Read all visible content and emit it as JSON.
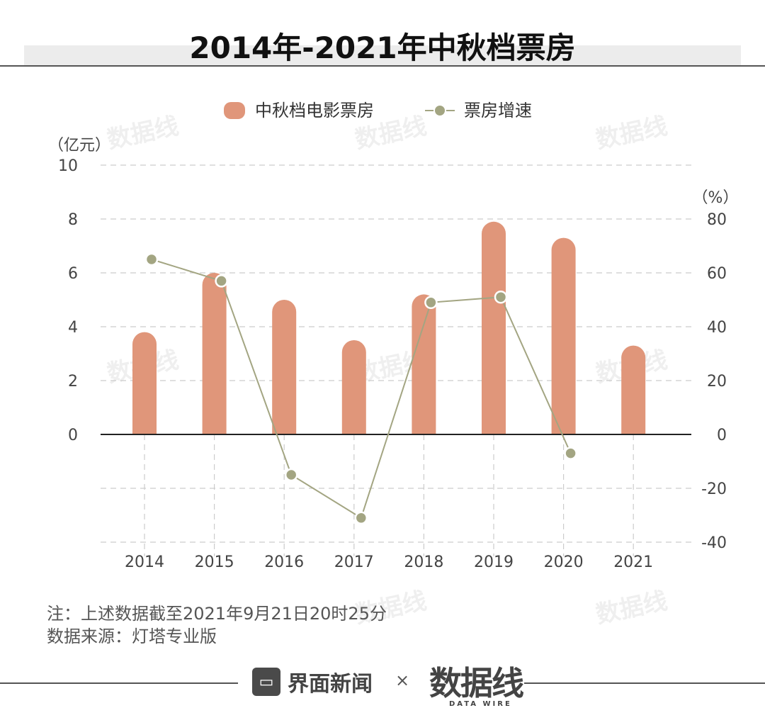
{
  "title": "2014年-2021年中秋档票房",
  "legend": {
    "bar_label": "中秋档电影票房",
    "line_label": "票房增速"
  },
  "note": {
    "line1": "注：上述数据截至2021年9月21日20时25分",
    "line2": "数据来源：灯塔专业版"
  },
  "footer": {
    "brand": "界面新闻",
    "times": "×",
    "partner": "数据线",
    "partner_sub": "DATA WIRE"
  },
  "watermark": "数据线",
  "colors": {
    "bar": "#e0967a",
    "line": "#a3a582",
    "marker": "#a3a582",
    "axis": "#222222",
    "grid": "#cccccc"
  },
  "chart_data": {
    "type": "bar+line",
    "categories": [
      "2014",
      "2015",
      "2016",
      "2017",
      "2018",
      "2019",
      "2020",
      "2021"
    ],
    "series": [
      {
        "name": "中秋档电影票房",
        "type": "bar",
        "axis": "left",
        "values": [
          3.8,
          6.0,
          5.0,
          3.5,
          5.2,
          7.9,
          7.3,
          3.3
        ]
      },
      {
        "name": "票房增速",
        "type": "line",
        "axis": "right",
        "values": [
          65,
          57,
          -15,
          -31,
          49,
          51,
          -7,
          null
        ]
      }
    ],
    "y_left": {
      "unit": "（亿元）",
      "ticks": [
        0,
        2,
        4,
        6,
        8,
        10
      ],
      "range": [
        -4,
        10
      ]
    },
    "y_right": {
      "unit": "（%）",
      "ticks": [
        -40,
        -20,
        0,
        20,
        40,
        60,
        80
      ],
      "range": [
        -40,
        100
      ]
    },
    "grid": true,
    "legend_position": "top-center"
  }
}
